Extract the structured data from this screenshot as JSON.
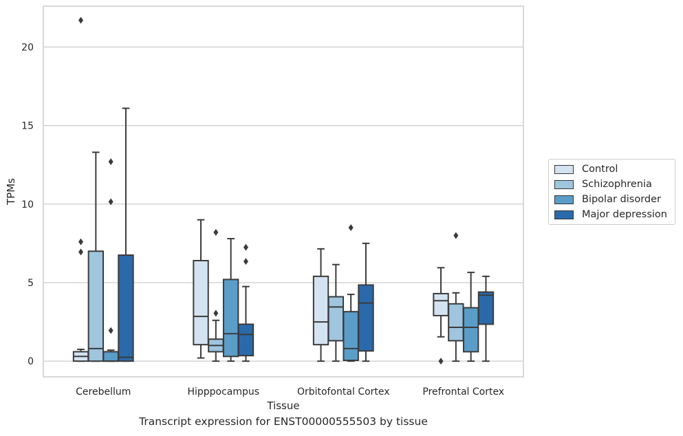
{
  "chart_data": {
    "type": "box",
    "xlabel": "Tissue",
    "ylabel": "TPMs",
    "caption": "Transcript expression for ENST00000555503 by tissue",
    "ylim": [
      -1,
      22.6
    ],
    "yticks": [
      0,
      5,
      10,
      15,
      20
    ],
    "grid": true,
    "legend_position": "right",
    "categories": [
      "Cerebellum",
      "Hipppocampus",
      "Orbitofontal Cortex",
      "Prefrontal Cortex"
    ],
    "series": [
      {
        "name": "Control",
        "color": "#d4e3f2",
        "boxes": [
          {
            "whislo": 0,
            "q1": 0,
            "med": 0.3,
            "q3": 0.6,
            "whishi": 0.75,
            "fliers": [
              7.6,
              6.95,
              21.7
            ]
          },
          {
            "whislo": 0.2,
            "q1": 1.05,
            "med": 2.85,
            "q3": 6.4,
            "whishi": 9.0,
            "fliers": []
          },
          {
            "whislo": 0,
            "q1": 1.05,
            "med": 2.5,
            "q3": 5.4,
            "whishi": 7.15,
            "fliers": []
          },
          {
            "whislo": 1.55,
            "q1": 2.9,
            "med": 3.85,
            "q3": 4.3,
            "whishi": 5.95,
            "fliers": [
              0
            ]
          }
        ]
      },
      {
        "name": "Schizophrenia",
        "color": "#9fc5df",
        "boxes": [
          {
            "whislo": 0,
            "q1": 0,
            "med": 0.8,
            "q3": 7.0,
            "whishi": 13.3,
            "fliers": []
          },
          {
            "whislo": 0,
            "q1": 0.6,
            "med": 1.0,
            "q3": 1.4,
            "whishi": 2.6,
            "fliers": [
              3.05,
              8.2
            ]
          },
          {
            "whislo": 0,
            "q1": 1.3,
            "med": 3.45,
            "q3": 4.1,
            "whishi": 6.15,
            "fliers": []
          },
          {
            "whislo": 0,
            "q1": 1.3,
            "med": 2.15,
            "q3": 3.65,
            "whishi": 4.35,
            "fliers": [
              8.0
            ]
          }
        ]
      },
      {
        "name": "Bipolar disorder",
        "color": "#5b9dc9",
        "boxes": [
          {
            "whislo": 0,
            "q1": 0,
            "med": 0,
            "q3": 0.6,
            "whishi": 0.7,
            "fliers": [
              1.95,
              10.15,
              12.7
            ]
          },
          {
            "whislo": 0,
            "q1": 0.3,
            "med": 1.75,
            "q3": 5.2,
            "whishi": 7.8,
            "fliers": []
          },
          {
            "whislo": 0,
            "q1": 0.05,
            "med": 0.8,
            "q3": 3.15,
            "whishi": 4.25,
            "fliers": [
              8.5
            ]
          },
          {
            "whislo": 0,
            "q1": 0.6,
            "med": 2.15,
            "q3": 3.4,
            "whishi": 5.65,
            "fliers": []
          }
        ]
      },
      {
        "name": "Major depression",
        "color": "#2a6aab",
        "boxes": [
          {
            "whislo": 0,
            "q1": 0,
            "med": 0.25,
            "q3": 6.75,
            "whishi": 16.1,
            "fliers": []
          },
          {
            "whislo": 0,
            "q1": 0.35,
            "med": 1.7,
            "q3": 2.35,
            "whishi": 4.75,
            "fliers": [
              6.35,
              7.25
            ]
          },
          {
            "whislo": 0,
            "q1": 0.65,
            "med": 3.7,
            "q3": 4.85,
            "whishi": 7.5,
            "fliers": []
          },
          {
            "whislo": 0,
            "q1": 2.35,
            "med": 4.2,
            "q3": 4.4,
            "whishi": 5.4,
            "fliers": []
          }
        ]
      }
    ]
  }
}
